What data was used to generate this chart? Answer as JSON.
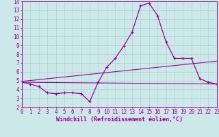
{
  "xlabel": "Windchill (Refroidissement éolien,°C)",
  "bg_color": "#cce8e8",
  "grid_color": "#b0d8d8",
  "line_color": "#990099",
  "x_min": 0,
  "x_max": 23,
  "y_min": 2,
  "y_max": 14,
  "series1_x": [
    0,
    1,
    2,
    3,
    4,
    5,
    6,
    7,
    8,
    9,
    10,
    11,
    12,
    13,
    14,
    15,
    16,
    17,
    18,
    19,
    20,
    21,
    22,
    23
  ],
  "series1_y": [
    4.8,
    4.6,
    4.3,
    3.6,
    3.5,
    3.6,
    3.6,
    3.5,
    2.6,
    4.8,
    6.5,
    7.5,
    8.9,
    10.5,
    13.5,
    13.8,
    12.4,
    9.4,
    7.5,
    7.5,
    7.5,
    5.2,
    4.8,
    4.6
  ],
  "series2_x": [
    0,
    23
  ],
  "series2_y": [
    4.8,
    4.6
  ],
  "series3_x": [
    0,
    23
  ],
  "series3_y": [
    4.9,
    7.2
  ],
  "xtick_values": [
    0,
    1,
    2,
    3,
    4,
    5,
    6,
    7,
    8,
    9,
    10,
    11,
    12,
    13,
    14,
    15,
    16,
    17,
    18,
    19,
    20,
    21,
    22,
    23
  ],
  "ytick_values": [
    2,
    3,
    4,
    5,
    6,
    7,
    8,
    9,
    10,
    11,
    12,
    13,
    14
  ],
  "font_size": 5.5,
  "label_font_size": 6.0
}
